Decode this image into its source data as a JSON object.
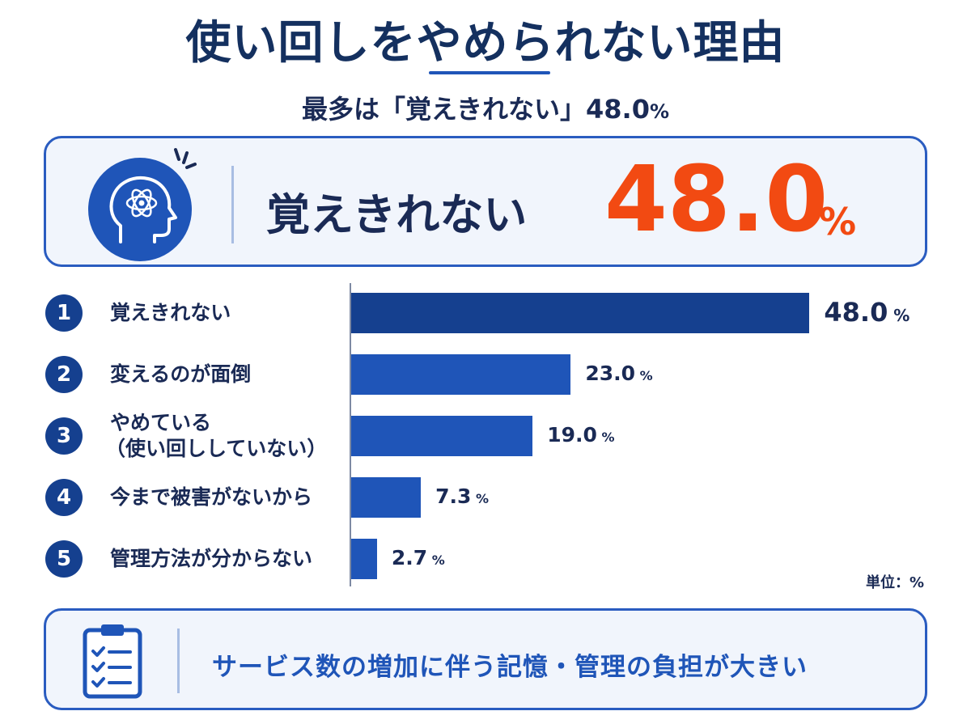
{
  "header": {
    "title": "使い回しをやめられない理由",
    "subtitle_text": "最多は「覚えきれない」48.0",
    "subtitle_unit": "%"
  },
  "highlight": {
    "icon": "head-brain-icon",
    "label": "覚えきれない",
    "value": "48.0",
    "unit": "%",
    "accent": "#f24a12"
  },
  "chart_data": {
    "type": "bar",
    "orientation": "horizontal",
    "categories": [
      "覚えきれない",
      "変えるのが面倒",
      "やめている\n（使い回ししていない）",
      "今まで被害がないから",
      "管理方法が分からない"
    ],
    "ranks": [
      "1",
      "2",
      "3",
      "4",
      "5"
    ],
    "values": [
      48.0,
      23.0,
      19.0,
      7.3,
      2.7
    ],
    "value_labels": [
      "48.0",
      "23.0",
      "19.0",
      "7.3",
      "2.7"
    ],
    "value_unit": "%",
    "unit_note": "単位：%",
    "xlim": [
      0,
      50
    ],
    "grid": false,
    "colors": [
      "#15408f",
      "#1f55b8",
      "#1f55b8",
      "#1f55b8",
      "#1f55b8"
    ]
  },
  "footer": {
    "icon": "checklist-clipboard-icon",
    "text": "サービス数の増加に伴う記憶・管理の負担が大きい"
  }
}
